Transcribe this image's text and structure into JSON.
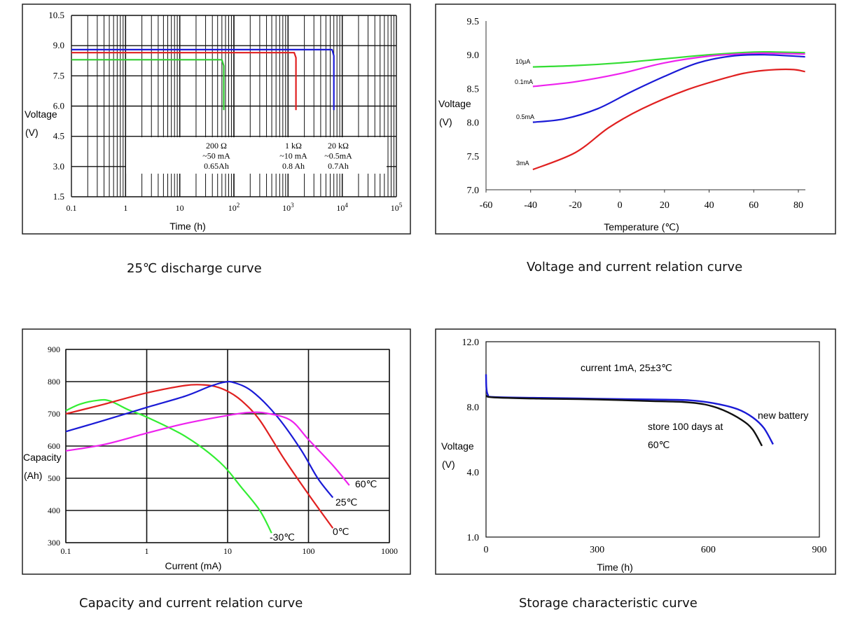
{
  "chart_data": [
    {
      "id": "discharge",
      "type": "line",
      "title": "25℃ discharge curve",
      "xlabel": "Time (h)",
      "ylabel": "Voltage (V)",
      "xscale": "log",
      "xlim": [
        0.1,
        100000
      ],
      "ylim": [
        1.5,
        10.5
      ],
      "xticks": [
        {
          "v": 0.1,
          "label": "0.1",
          "sup": ""
        },
        {
          "v": 1,
          "label": "1",
          "sup": ""
        },
        {
          "v": 10,
          "label": "10",
          "sup": ""
        },
        {
          "v": 100,
          "label": "10",
          "sup": "2"
        },
        {
          "v": 1000,
          "label": "10",
          "sup": "3"
        },
        {
          "v": 10000,
          "label": "10",
          "sup": "4"
        },
        {
          "v": 100000,
          "label": "10",
          "sup": "5"
        }
      ],
      "yticks": [
        "1.5",
        "3.0",
        "4.5",
        "6.0",
        "7.5",
        "9.0",
        "10.5"
      ],
      "series": [
        {
          "name": "200 Ω",
          "color": "#33cc33",
          "points": [
            [
              0.1,
              8.3
            ],
            [
              60,
              8.3
            ],
            [
              65,
              8.0
            ],
            [
              65,
              5.8
            ]
          ]
        },
        {
          "name": "1 kΩ",
          "color": "#e02020",
          "points": [
            [
              0.1,
              8.65
            ],
            [
              1300,
              8.65
            ],
            [
              1400,
              8.4
            ],
            [
              1400,
              5.8
            ]
          ]
        },
        {
          "name": "20 kΩ",
          "color": "#1a1ad6",
          "points": [
            [
              0.1,
              8.8
            ],
            [
              6500,
              8.8
            ],
            [
              7000,
              8.5
            ],
            [
              7000,
              5.8
            ]
          ]
        }
      ],
      "annotations": [
        {
          "lines": [
            "200 Ω",
            "~50 mA",
            "0.65Ah"
          ]
        },
        {
          "lines": [
            "1 kΩ",
            "~10 mA",
            "0.8 Ah"
          ]
        },
        {
          "lines": [
            "20 kΩ",
            "~0.5mA",
            "0.7Ah"
          ]
        }
      ]
    },
    {
      "id": "voltage_temperature",
      "type": "line",
      "title": "Voltage and current relation curve",
      "xlabel": "Temperature (℃)",
      "ylabel": "Voltage (V)",
      "xlim": [
        -60,
        85
      ],
      "ylim": [
        7.0,
        9.5
      ],
      "xticks": [
        "-60",
        "-40",
        "-20",
        "0",
        "20",
        "40",
        "60",
        "80"
      ],
      "yticks": [
        "7.0",
        "7.5",
        "8.0",
        "8.5",
        "9.0",
        "9.5"
      ],
      "series": [
        {
          "name": "10μA",
          "color": "#33dd33",
          "points": [
            [
              -39,
              8.82
            ],
            [
              -20,
              8.84
            ],
            [
              0,
              8.88
            ],
            [
              20,
              8.94
            ],
            [
              40,
              9.0
            ],
            [
              60,
              9.04
            ],
            [
              70,
              9.04
            ],
            [
              83,
              9.03
            ]
          ]
        },
        {
          "name": "0.1mA",
          "color": "#ee22ee",
          "points": [
            [
              -39,
              8.53
            ],
            [
              -20,
              8.6
            ],
            [
              0,
              8.72
            ],
            [
              20,
              8.88
            ],
            [
              40,
              8.98
            ],
            [
              60,
              9.02
            ],
            [
              70,
              9.02
            ],
            [
              83,
              9.01
            ]
          ]
        },
        {
          "name": "0.5mA",
          "color": "#1a1ad6",
          "points": [
            [
              -39,
              8.0
            ],
            [
              -25,
              8.05
            ],
            [
              -10,
              8.2
            ],
            [
              5,
              8.45
            ],
            [
              20,
              8.68
            ],
            [
              35,
              8.88
            ],
            [
              50,
              8.98
            ],
            [
              65,
              9.0
            ],
            [
              83,
              8.97
            ]
          ]
        },
        {
          "name": "3mA",
          "color": "#e02020",
          "points": [
            [
              -39,
              7.3
            ],
            [
              -20,
              7.55
            ],
            [
              -5,
              7.92
            ],
            [
              10,
              8.2
            ],
            [
              30,
              8.48
            ],
            [
              50,
              8.68
            ],
            [
              60,
              8.75
            ],
            [
              70,
              8.78
            ],
            [
              78,
              8.78
            ],
            [
              83,
              8.75
            ]
          ]
        }
      ]
    },
    {
      "id": "capacity_current",
      "type": "line",
      "title": "Capacity and current relation curve",
      "xlabel": "Current (mA)",
      "ylabel": "Capacity (Ah)",
      "xscale": "log",
      "xlim": [
        0.1,
        1000
      ],
      "ylim": [
        300,
        900
      ],
      "xticks": [
        "0.1",
        "1",
        "10",
        "100",
        "1000"
      ],
      "yticks": [
        "300",
        "400",
        "500",
        "600",
        "700",
        "800",
        "900"
      ],
      "series": [
        {
          "name": "-30℃",
          "color": "#33ee33",
          "points": [
            [
              0.1,
              710
            ],
            [
              0.15,
              730
            ],
            [
              0.25,
              742
            ],
            [
              0.35,
              740
            ],
            [
              0.6,
              712
            ],
            [
              1,
              690
            ],
            [
              3,
              630
            ],
            [
              8,
              550
            ],
            [
              15,
              470
            ],
            [
              25,
              400
            ],
            [
              35,
              330
            ]
          ]
        },
        {
          "name": "0℃",
          "color": "#e02020",
          "points": [
            [
              0.1,
              700
            ],
            [
              0.3,
              730
            ],
            [
              1,
              765
            ],
            [
              3,
              788
            ],
            [
              5,
              790
            ],
            [
              7,
              785
            ],
            [
              10,
              770
            ],
            [
              15,
              740
            ],
            [
              25,
              680
            ],
            [
              50,
              560
            ],
            [
              100,
              450
            ],
            [
              200,
              345
            ]
          ]
        },
        {
          "name": "25℃",
          "color": "#1a1ad6",
          "points": [
            [
              0.1,
              645
            ],
            [
              0.3,
              680
            ],
            [
              1,
              720
            ],
            [
              3,
              755
            ],
            [
              6,
              785
            ],
            [
              9,
              798
            ],
            [
              12,
              797
            ],
            [
              20,
              770
            ],
            [
              40,
              695
            ],
            [
              80,
              590
            ],
            [
              130,
              500
            ],
            [
              200,
              440
            ]
          ]
        },
        {
          "name": "60℃",
          "color": "#ee22ee",
          "points": [
            [
              0.1,
              585
            ],
            [
              0.3,
              605
            ],
            [
              1,
              640
            ],
            [
              3,
              670
            ],
            [
              10,
              695
            ],
            [
              18,
              704
            ],
            [
              30,
              702
            ],
            [
              60,
              680
            ],
            [
              100,
              620
            ],
            [
              200,
              540
            ],
            [
              320,
              478
            ]
          ]
        }
      ]
    },
    {
      "id": "storage",
      "type": "line",
      "title": "Storage characteristic curve",
      "xlabel": "Time (h)",
      "ylabel": "Voltage (V)",
      "xlim": [
        0,
        900
      ],
      "ylim": [
        1.0,
        12.0
      ],
      "xticks": [
        "0",
        "300",
        "600",
        "900"
      ],
      "yticks": [
        "1.0",
        "4.0",
        "8.0",
        "12.0"
      ],
      "ytick_values": [
        1.0,
        4.0,
        8.0,
        12.0
      ],
      "annotation": "current 1mA, 25±3℃",
      "series": [
        {
          "name": "new battery",
          "color": "#1a1ad6",
          "points": [
            [
              0,
              10.0
            ],
            [
              1,
              9.2
            ],
            [
              5,
              8.75
            ],
            [
              20,
              8.6
            ],
            [
              150,
              8.55
            ],
            [
              300,
              8.5
            ],
            [
              450,
              8.45
            ],
            [
              550,
              8.4
            ],
            [
              620,
              8.2
            ],
            [
              680,
              7.85
            ],
            [
              720,
              7.35
            ],
            [
              750,
              6.7
            ],
            [
              775,
              5.7
            ]
          ]
        },
        {
          "name": "store 100 days at 60℃",
          "label_lines": [
            "store 100 days at",
            "60℃"
          ],
          "color": "#111111",
          "points": [
            [
              0,
              8.7
            ],
            [
              20,
              8.58
            ],
            [
              150,
              8.5
            ],
            [
              300,
              8.45
            ],
            [
              450,
              8.35
            ],
            [
              530,
              8.3
            ],
            [
              590,
              8.15
            ],
            [
              640,
              7.8
            ],
            [
              690,
              7.2
            ],
            [
              720,
              6.6
            ],
            [
              745,
              5.6
            ]
          ]
        }
      ]
    }
  ],
  "captions": {
    "discharge": "25℃ discharge curve",
    "voltage_temperature": "Voltage and current relation curve",
    "capacity_current": "Capacity and current relation curve",
    "storage": "Storage characteristic curve"
  },
  "axis_text": {
    "discharge_ylabel_1": "Voltage",
    "discharge_ylabel_2": "(V)",
    "voltage_temperature_ylabel_1": "Voltage",
    "voltage_temperature_ylabel_2": "(V)",
    "capacity_current_ylabel_1": "Capacity",
    "capacity_current_ylabel_2": "(Ah)",
    "storage_ylabel_1": "Voltage",
    "storage_ylabel_2": "(V)"
  }
}
